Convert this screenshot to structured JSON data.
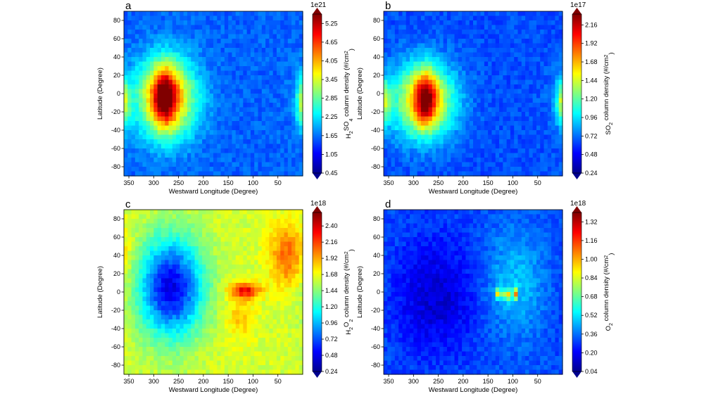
{
  "chart_data": [
    {
      "type": "heatmap",
      "panel_label": "a",
      "quantity": "H2SO4 column density",
      "colorbar_label": {
        "pre": "H",
        "s1": "2",
        "mid": "SO",
        "s2": "4",
        "post": " column density (#/cm",
        "sup": "2",
        "end": ")"
      },
      "colorbar_exponent": "1e21",
      "colorbar_ticks": [
        "0.45",
        "1.05",
        "1.65",
        "2.25",
        "2.85",
        "3.45",
        "4.05",
        "4.65",
        "5.25"
      ],
      "colorbar_range": [
        0.45,
        5.55
      ],
      "xlabel": "Westward Longitude (Degree)",
      "ylabel": "Latitude (Degree)",
      "xticks": [
        350,
        300,
        250,
        200,
        150,
        100,
        50
      ],
      "yticks": [
        80,
        60,
        40,
        20,
        0,
        -20,
        -40,
        -60,
        -80
      ],
      "xlim": [
        360,
        0
      ],
      "ylim": [
        -90,
        90
      ],
      "background_level": 0.22,
      "features": [
        {
          "lon": 275,
          "lat": -5,
          "sigma_lon": 42,
          "sigma_lat": 30,
          "amplitude": 0.55
        },
        {
          "lon": 278,
          "lat": -3,
          "sigma_lon": 16,
          "sigma_lat": 22,
          "amplitude": 0.38
        },
        {
          "lon": 0,
          "lat": -10,
          "sigma_lon": 9,
          "sigma_lat": 18,
          "amplitude": 0.3
        }
      ]
    },
    {
      "type": "heatmap",
      "panel_label": "b",
      "quantity": "SO2 column density",
      "colorbar_label": {
        "pre": "SO",
        "s1": "2",
        "mid": "",
        "s2": "",
        "post": " column density (#/cm",
        "sup": "2",
        "end": ")"
      },
      "colorbar_exponent": "1e17",
      "colorbar_ticks": [
        "0.24",
        "0.48",
        "0.72",
        "0.96",
        "1.20",
        "1.44",
        "1.68",
        "1.92",
        "2.16"
      ],
      "colorbar_range": [
        0.24,
        2.3
      ],
      "xlabel": "Westward Longitude (Degree)",
      "ylabel": "Latitude (Degree)",
      "xticks": [
        350,
        300,
        250,
        200,
        150,
        100,
        50
      ],
      "yticks": [
        80,
        60,
        40,
        20,
        0,
        -20,
        -40,
        -60,
        -80
      ],
      "xlim": [
        360,
        0
      ],
      "ylim": [
        -90,
        90
      ],
      "background_level": 0.2,
      "features": [
        {
          "lon": 280,
          "lat": -8,
          "sigma_lon": 44,
          "sigma_lat": 28,
          "amplitude": 0.5
        },
        {
          "lon": 275,
          "lat": -5,
          "sigma_lon": 15,
          "sigma_lat": 20,
          "amplitude": 0.4
        },
        {
          "lon": 0,
          "lat": -8,
          "sigma_lon": 9,
          "sigma_lat": 16,
          "amplitude": 0.3
        }
      ]
    },
    {
      "type": "heatmap",
      "panel_label": "c",
      "quantity": "H2O2 column density",
      "colorbar_label": {
        "pre": "H",
        "s1": "2",
        "mid": "O",
        "s2": "2",
        "post": " column density (#/cm",
        "sup": "2",
        "end": ")"
      },
      "colorbar_exponent": "1e18",
      "colorbar_ticks": [
        "0.24",
        "0.48",
        "0.72",
        "0.96",
        "1.20",
        "1.44",
        "1.68",
        "1.92",
        "2.16",
        "2.40"
      ],
      "colorbar_range": [
        0.24,
        2.6
      ],
      "xlabel": "Westward Longitude (Degree)",
      "ylabel": "Latitude (Degree)",
      "xticks": [
        350,
        300,
        250,
        200,
        150,
        100,
        50
      ],
      "yticks": [
        80,
        60,
        40,
        20,
        0,
        -20,
        -40,
        -60,
        -80
      ],
      "xlim": [
        360,
        0
      ],
      "ylim": [
        -90,
        90
      ],
      "background_level": 0.58,
      "features": [
        {
          "lon": 265,
          "lat": 5,
          "sigma_lon": 45,
          "sigma_lat": 38,
          "amplitude": -0.48
        },
        {
          "lon": 115,
          "lat": 2,
          "sigma_lon": 22,
          "sigma_lat": 6,
          "amplitude": 0.28
        },
        {
          "lon": 30,
          "lat": 40,
          "sigma_lon": 25,
          "sigma_lat": 25,
          "amplitude": 0.2
        },
        {
          "lon": 125,
          "lat": -25,
          "sigma_lon": 20,
          "sigma_lat": 20,
          "amplitude": 0.1
        }
      ]
    },
    {
      "type": "heatmap",
      "panel_label": "d",
      "quantity": "O2 column density",
      "colorbar_label": {
        "pre": "O",
        "s1": "2",
        "mid": "",
        "s2": "",
        "post": " column density (#/cm",
        "sup": "2",
        "end": ")"
      },
      "colorbar_exponent": "1e18",
      "colorbar_ticks": [
        "0.04",
        "0.20",
        "0.36",
        "0.52",
        "0.68",
        "0.84",
        "1.00",
        "1.16",
        "1.32"
      ],
      "colorbar_range": [
        0.04,
        1.4
      ],
      "xlabel": "Westward Longitude (Degree)",
      "ylabel": "Latitude (Degree)",
      "xticks": [
        350,
        300,
        250,
        200,
        150,
        100,
        50
      ],
      "yticks": [
        80,
        60,
        40,
        20,
        0,
        -20,
        -40,
        -60,
        -80
      ],
      "xlim": [
        360,
        0
      ],
      "ylim": [
        -90,
        90
      ],
      "background_level": 0.2,
      "features": [
        {
          "lon": 255,
          "lat": -5,
          "sigma_lon": 60,
          "sigma_lat": 45,
          "amplitude": -0.12
        },
        {
          "lon": 95,
          "lat": 10,
          "sigma_lon": 45,
          "sigma_lat": 40,
          "amplitude": 0.12
        },
        {
          "lon": 128,
          "lat": -2,
          "sigma_lon": 3,
          "sigma_lat": 4,
          "amplitude": 0.65
        },
        {
          "lon": 112,
          "lat": -3,
          "sigma_lon": 3,
          "sigma_lat": 4,
          "amplitude": 0.62
        },
        {
          "lon": 96,
          "lat": -2,
          "sigma_lon": 3,
          "sigma_lat": 4,
          "amplitude": 0.58
        }
      ]
    }
  ]
}
